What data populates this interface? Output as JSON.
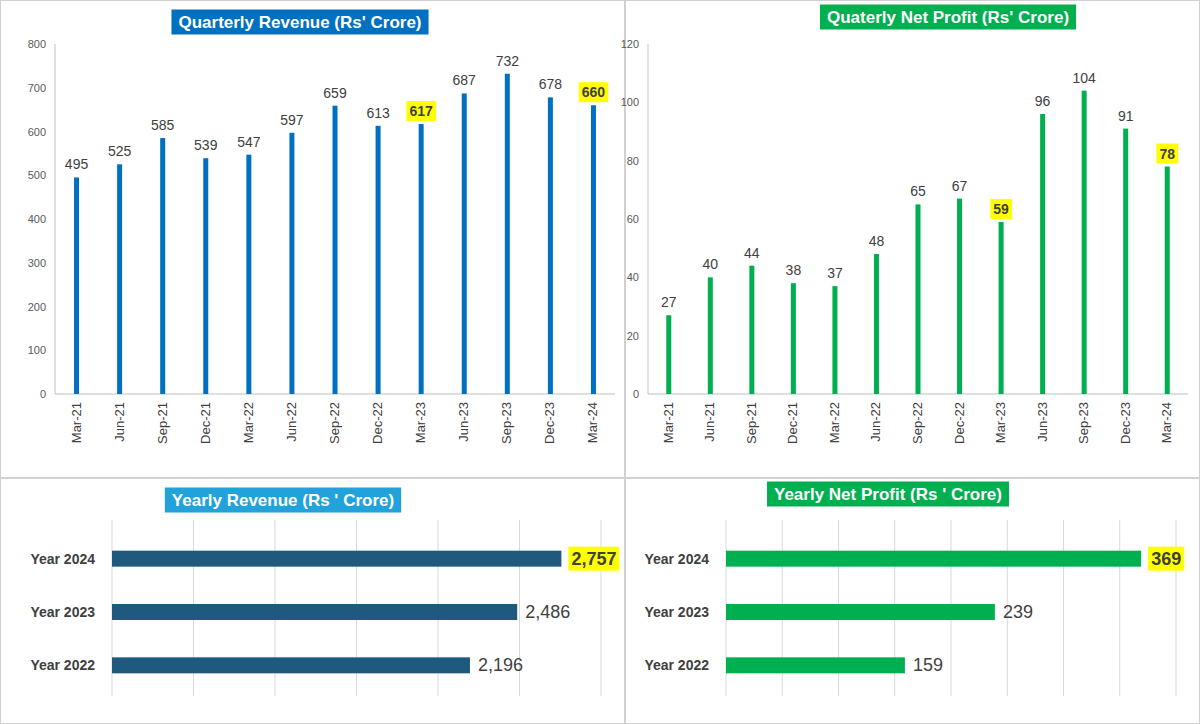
{
  "chart_data": [
    {
      "type": "bar",
      "title": "Quarterly Revenue  (Rs' Crore)",
      "categories": [
        "Mar-21",
        "Jun-21",
        "Sep-21",
        "Dec-21",
        "Mar-22",
        "Jun-22",
        "Sep-22",
        "Dec-22",
        "Mar-23",
        "Jun-23",
        "Sep-23",
        "Dec-23",
        "Mar-24"
      ],
      "values": [
        495,
        525,
        585,
        539,
        547,
        597,
        659,
        613,
        617,
        687,
        732,
        678,
        660
      ],
      "color": "#0070C0",
      "ylim": [
        0,
        800
      ],
      "yticks": [
        0,
        100,
        200,
        300,
        400,
        500,
        600,
        700,
        800
      ],
      "grid": false,
      "data_labels": true
    },
    {
      "type": "bar",
      "title": "Quaterly Net Profit (Rs' Crore)",
      "categories": [
        "Mar-21",
        "Jun-21",
        "Sep-21",
        "Dec-21",
        "Mar-22",
        "Jun-22",
        "Sep-22",
        "Dec-22",
        "Mar-23",
        "Jun-23",
        "Sep-23",
        "Dec-23",
        "Mar-24"
      ],
      "values": [
        27,
        40,
        44,
        38,
        37,
        48,
        65,
        67,
        59,
        96,
        104,
        91,
        78
      ],
      "color": "#00B050",
      "ylim": [
        0,
        120
      ],
      "yticks": [
        0,
        20,
        40,
        60,
        80,
        100,
        120
      ],
      "grid": false,
      "data_labels": true
    },
    {
      "type": "bar",
      "title": "Yearly Revenue (Rs ' Crore)",
      "orientation": "horizontal",
      "categories": [
        "Year 2024",
        "Year 2023",
        "Year 2022"
      ],
      "values": [
        2757,
        2486,
        2196
      ],
      "value_labels": [
        "2,757",
        "2,486",
        "2,196"
      ],
      "color": "#1F5A7E",
      "xlim": [
        0,
        3000
      ],
      "xticks": [
        0,
        500,
        1000,
        1500,
        2000,
        2500,
        3000
      ],
      "grid": true,
      "data_labels": true,
      "tick_labels": "y"
    },
    {
      "type": "bar",
      "title": "Yearly Net Profit (Rs ' Crore)",
      "orientation": "horizontal",
      "categories": [
        "Year 2024",
        "Year 2023",
        "Year 2022"
      ],
      "values": [
        369,
        239,
        159
      ],
      "color": "#00B050",
      "xlim": [
        0,
        400
      ],
      "xticks": [
        0,
        50,
        100,
        150,
        200,
        250,
        300,
        350,
        400
      ],
      "grid": true,
      "data_labels": true,
      "tick_labels": "y"
    }
  ]
}
